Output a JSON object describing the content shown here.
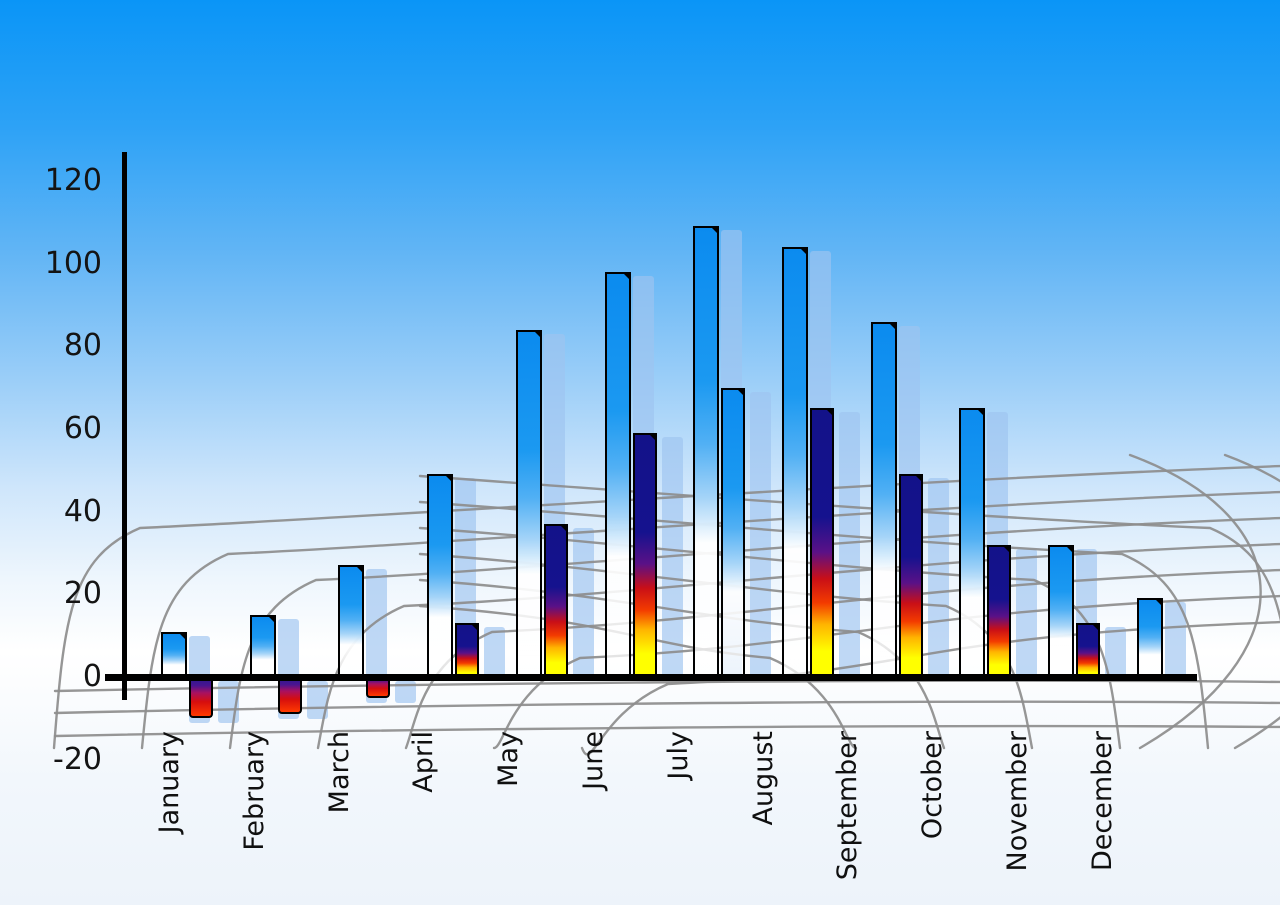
{
  "chart_data": {
    "type": "bar",
    "title": "",
    "categories": [
      "January",
      "February",
      "March",
      "April",
      "May",
      "June",
      "July",
      "August",
      "September",
      "October",
      "November",
      "December"
    ],
    "series": [
      {
        "name": "primary-blue-bar",
        "values": [
          11,
          15,
          27,
          49,
          84,
          98,
          109,
          104,
          86,
          65,
          32,
          19
        ]
      },
      {
        "name": "secondary-bar",
        "values": [
          -10,
          -9,
          -5,
          13,
          37,
          59,
          70,
          65,
          49,
          32,
          13,
          null
        ]
      }
    ],
    "secondary_variant": [
      "negative",
      "negative",
      "negative",
      "rainbow",
      "rainbow",
      "rainbow",
      "blue",
      "rainbow",
      "rainbow",
      "rainbow",
      "rainbow",
      "none"
    ],
    "y_axis": {
      "min": -20,
      "max": 120,
      "tick_step": 20,
      "ticks": [
        120,
        100,
        80,
        60,
        40,
        20,
        0,
        -20
      ]
    },
    "x_axis": {
      "labels_rotated_90ccw": true
    },
    "legend": "none",
    "grid": "curved-perspective-mesh"
  },
  "colors": {
    "sky_top": "#0a95f7",
    "sky_bottom": "#edf3fa",
    "bar_blue_top": "#0b8bef",
    "bar_fade_bottom": "#ffffff",
    "rainbow_navy": "#14128c",
    "rainbow_red": "#d60f12",
    "rainbow_yellow": "#ffff00",
    "negative_red": "#e01010",
    "echo_bar": "#9ec4f0",
    "grid_line": "#8d8d8d",
    "axis": "#000000",
    "label_text": "#111111"
  }
}
